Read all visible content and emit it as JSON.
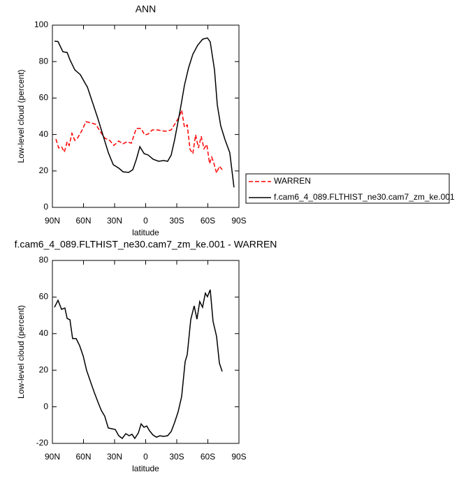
{
  "chart_data": [
    {
      "type": "line",
      "title": "ANN",
      "xlabel": "latitude",
      "ylabel": "Low-level cloud (percent)",
      "xlim": [
        90,
        -90
      ],
      "xticks": [
        {
          "value": 90,
          "label": "90N"
        },
        {
          "value": 60,
          "label": "60N"
        },
        {
          "value": 30,
          "label": "30N"
        },
        0,
        {
          "value": -30,
          "label": "30S"
        },
        {
          "value": -60,
          "label": "60S"
        },
        {
          "value": -90,
          "label": "90S"
        }
      ],
      "ylim": [
        0,
        100
      ],
      "yticks": [
        0,
        20,
        40,
        60,
        80,
        100
      ],
      "legend": "right",
      "series": [
        {
          "name": "WARREN",
          "color": "#ff0000",
          "dash": true,
          "x": [
            86.6,
            83.9,
            81.2,
            78.5,
            75.8,
            73.8,
            71.1,
            68.4,
            65.7,
            61.7,
            57.6,
            52.9,
            48.2,
            44.2,
            39.5,
            34.8,
            30.7,
            26,
            21.9,
            17.9,
            13.8,
            9.1,
            4.4,
            1,
            -2.3,
            -6.4,
            -11.8,
            -15.8,
            -19.9,
            -24.6,
            -28,
            -32,
            -34.7,
            -37.4,
            -40.1,
            -42.8,
            -45.5,
            -48.2,
            -50.9,
            -53.6,
            -56.3,
            -59,
            -61.7,
            -63.7,
            -65.7,
            -68.4,
            -71.1,
            -73.8
          ],
          "values": [
            37.5,
            32.6,
            33.3,
            30.3,
            36,
            34,
            40.6,
            36.8,
            38,
            42,
            47,
            46.4,
            45.6,
            42,
            38,
            36.8,
            34,
            36.4,
            34.9,
            36,
            35.2,
            43.3,
            43.3,
            39.8,
            40.2,
            42.5,
            42.5,
            42,
            41.8,
            42.5,
            45.6,
            49.4,
            53.3,
            44,
            45.2,
            31.8,
            29.5,
            39.8,
            32.6,
            39,
            32.2,
            34.5,
            24,
            27.6,
            24.5,
            18.8,
            22.6,
            20.7
          ]
        },
        {
          "name": "f.cam6_4_089.FLTHIST_ne30.cam7_zm_ke.001",
          "color": "#000000",
          "dash": false,
          "x": [
            88,
            84.6,
            79.9,
            75.8,
            73.1,
            68.4,
            63,
            58.3,
            56.2,
            51.5,
            46.1,
            40.7,
            36,
            31.3,
            25.9,
            21.8,
            16.4,
            12.4,
            9,
            5.6,
            1.5,
            -2.5,
            -7.2,
            -12.6,
            -17.4,
            -21.2,
            -24.6,
            -28,
            -33.4,
            -37.4,
            -41.4,
            -45.5,
            -50.2,
            -55,
            -59.6,
            -62.3,
            -66.4,
            -69.1,
            -72.4,
            -76.5,
            -81.2,
            -85.2
          ],
          "values": [
            91.2,
            91,
            85.4,
            85,
            81,
            75.5,
            72.8,
            68,
            66,
            58,
            48.7,
            38.7,
            30,
            23.4,
            21.5,
            19.5,
            19.2,
            20.7,
            26.4,
            33.3,
            29.5,
            28.7,
            26.4,
            25.3,
            25.7,
            25.3,
            28.7,
            37.2,
            53.6,
            67,
            76.6,
            84,
            89,
            92.3,
            93,
            90.8,
            75.5,
            56.3,
            44.8,
            37.2,
            30,
            11
          ]
        }
      ]
    },
    {
      "type": "line",
      "title": "f.cam6_4_089.FLTHIST_ne30.cam7_zm_ke.001 - WARREN",
      "xlabel": "latitude",
      "ylabel": "Low-level cloud (percent)",
      "xlim": [
        90,
        -90
      ],
      "xticks": [
        {
          "value": 90,
          "label": "90N"
        },
        {
          "value": 60,
          "label": "60N"
        },
        {
          "value": 30,
          "label": "30N"
        },
        0,
        {
          "value": -30,
          "label": "30S"
        },
        {
          "value": -60,
          "label": "60S"
        },
        {
          "value": -90,
          "label": "90S"
        }
      ],
      "ylim": [
        -20,
        80
      ],
      "yticks": [
        -20,
        0,
        20,
        40,
        60,
        80
      ],
      "color": "#000000",
      "x": [
        88,
        84.6,
        81.2,
        77.9,
        75.8,
        73.1,
        70.5,
        67.1,
        63.7,
        60.3,
        57,
        52.9,
        49.6,
        45.5,
        42.8,
        39.5,
        36.1,
        32.7,
        29.3,
        26,
        22.6,
        19.2,
        15.9,
        13.2,
        10.5,
        7.1,
        4.4,
        1.7,
        -1,
        -3.7,
        -7,
        -10.4,
        -13.8,
        -17.2,
        -21.2,
        -24.6,
        -28,
        -31.3,
        -34.7,
        -38.1,
        -40.1,
        -43.5,
        -46.8,
        -49.5,
        -52.2,
        -54.9,
        -57.6,
        -59.6,
        -62.3,
        -65,
        -68.4,
        -71.1,
        -73.8
      ],
      "values": [
        54.4,
        58.2,
        53.3,
        54,
        48.3,
        47.6,
        37.3,
        37.3,
        33.4,
        27.7,
        20,
        13.2,
        7.9,
        1.8,
        -2,
        -5.1,
        -11.6,
        -12,
        -12.4,
        -15.8,
        -17.3,
        -14.7,
        -15.8,
        -15,
        -17.3,
        -14.3,
        -9.3,
        -11.2,
        -10.5,
        -13.1,
        -15.4,
        -16.6,
        -15.8,
        -16.2,
        -15.8,
        -13.5,
        -8.5,
        -2.8,
        5.6,
        24.7,
        28.5,
        47.6,
        55.2,
        47.9,
        57.5,
        54.4,
        62.1,
        60.2,
        64,
        46.8,
        38.4,
        23.9,
        19.3
      ]
    }
  ]
}
